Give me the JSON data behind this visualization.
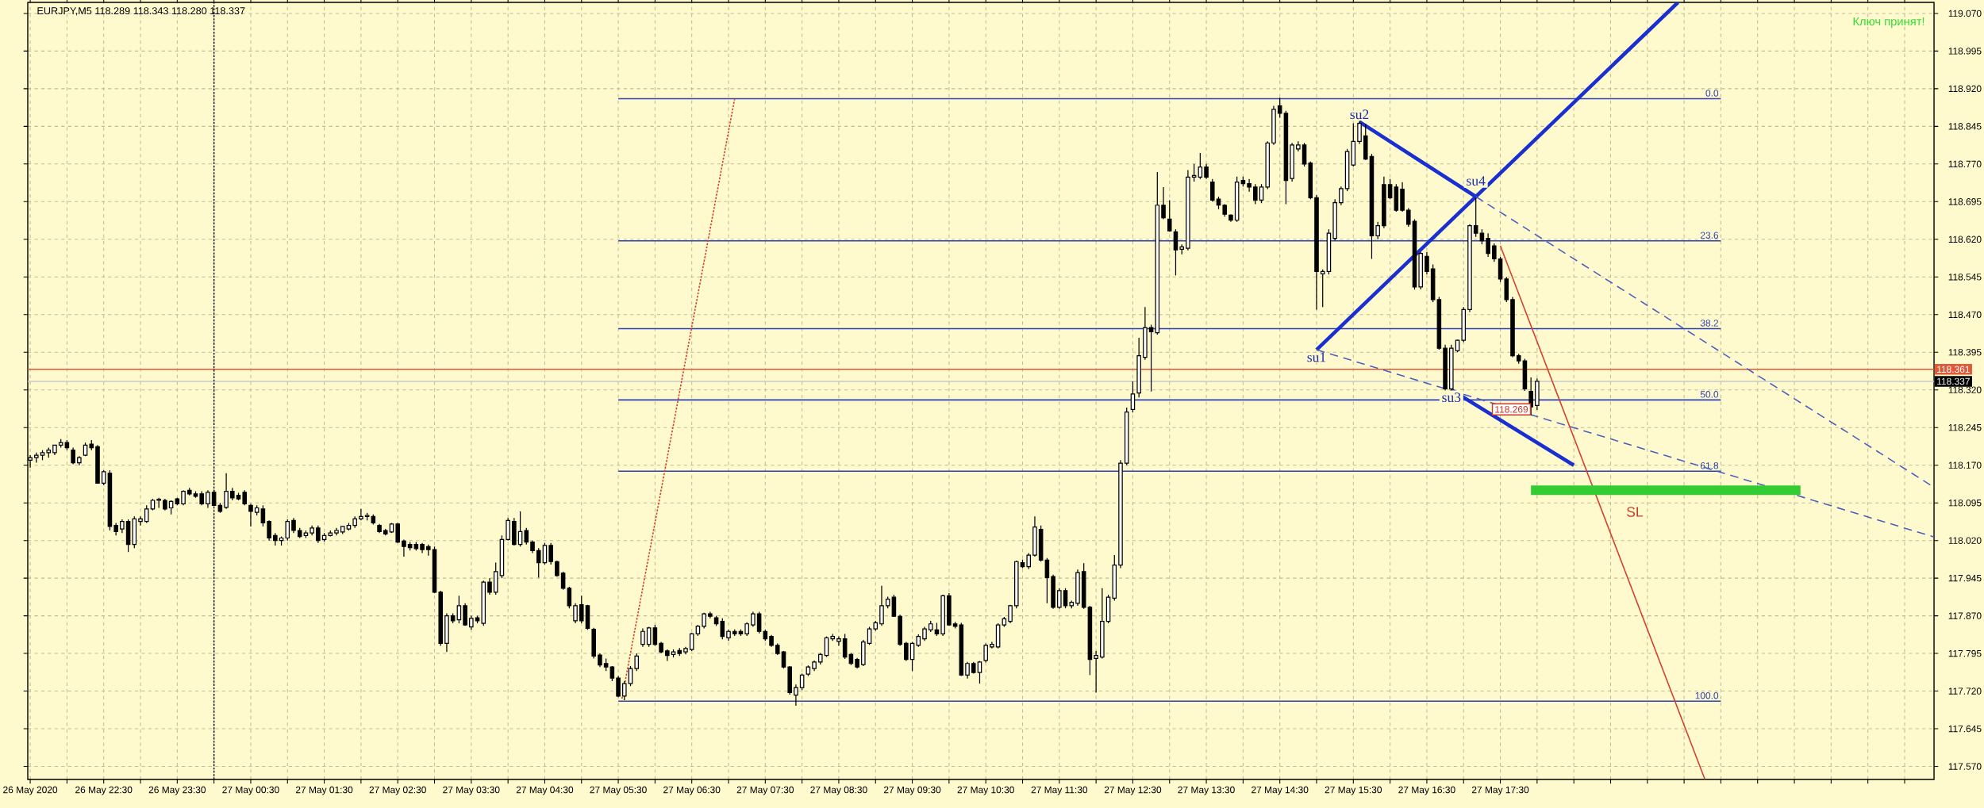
{
  "chart_data": {
    "type": "candlestick",
    "title": "EURJPY,M5  118.289 118.343 118.280 118.337",
    "x": [
      "2020-05-26T21:30",
      "2020-05-26T21:35",
      "2020-05-26T21:40",
      "2020-05-26T21:45",
      "2020-05-26T21:50",
      "2020-05-26T21:55",
      "2020-05-26T22:00",
      "2020-05-26T22:05",
      "2020-05-26T22:10",
      "2020-05-26T22:15",
      "2020-05-26T22:20",
      "2020-05-26T22:25",
      "2020-05-26T22:30",
      "2020-05-26T22:35",
      "2020-05-26T22:40",
      "2020-05-26T22:45",
      "2020-05-26T22:50",
      "2020-05-26T22:55",
      "2020-05-26T23:00",
      "2020-05-26T23:05",
      "2020-05-26T23:10",
      "2020-05-26T23:15",
      "2020-05-26T23:20",
      "2020-05-26T23:25",
      "2020-05-26T23:30",
      "2020-05-26T23:35",
      "2020-05-26T23:40",
      "2020-05-26T23:45",
      "2020-05-26T23:50",
      "2020-05-26T23:55",
      "2020-05-27T00:00",
      "2020-05-27T00:05",
      "2020-05-27T00:10",
      "2020-05-27T00:15",
      "2020-05-27T00:20",
      "2020-05-27T00:25",
      "2020-05-27T00:30",
      "2020-05-27T00:35",
      "2020-05-27T00:40",
      "2020-05-27T00:45",
      "2020-05-27T00:50",
      "2020-05-27T00:55",
      "2020-05-27T01:00",
      "2020-05-27T01:05",
      "2020-05-27T01:10",
      "2020-05-27T01:15",
      "2020-05-27T01:20",
      "2020-05-27T01:25",
      "2020-05-27T01:30",
      "2020-05-27T01:35",
      "2020-05-27T01:40",
      "2020-05-27T01:45",
      "2020-05-27T01:50",
      "2020-05-27T01:55",
      "2020-05-27T02:00",
      "2020-05-27T02:05",
      "2020-05-27T02:10",
      "2020-05-27T02:15",
      "2020-05-27T02:20",
      "2020-05-27T02:25",
      "2020-05-27T02:30",
      "2020-05-27T02:35",
      "2020-05-27T02:40",
      "2020-05-27T02:45",
      "2020-05-27T02:50",
      "2020-05-27T02:55",
      "2020-05-27T03:00",
      "2020-05-27T03:05",
      "2020-05-27T03:10",
      "2020-05-27T03:15",
      "2020-05-27T03:20",
      "2020-05-27T03:25",
      "2020-05-27T03:30",
      "2020-05-27T03:35",
      "2020-05-27T03:40",
      "2020-05-27T03:45",
      "2020-05-27T03:50",
      "2020-05-27T03:55",
      "2020-05-27T04:00",
      "2020-05-27T04:05",
      "2020-05-27T04:10",
      "2020-05-27T04:15",
      "2020-05-27T04:20",
      "2020-05-27T04:25",
      "2020-05-27T04:30",
      "2020-05-27T04:35",
      "2020-05-27T04:40",
      "2020-05-27T04:45",
      "2020-05-27T04:50",
      "2020-05-27T04:55",
      "2020-05-27T05:00",
      "2020-05-27T05:05",
      "2020-05-27T05:10",
      "2020-05-27T05:15",
      "2020-05-27T05:20",
      "2020-05-27T05:25",
      "2020-05-27T05:30",
      "2020-05-27T05:35",
      "2020-05-27T05:40",
      "2020-05-27T05:45",
      "2020-05-27T05:50",
      "2020-05-27T05:55",
      "2020-05-27T06:00",
      "2020-05-27T06:05",
      "2020-05-27T06:10",
      "2020-05-27T06:15",
      "2020-05-27T06:20",
      "2020-05-27T06:25",
      "2020-05-27T06:30",
      "2020-05-27T06:35",
      "2020-05-27T06:40",
      "2020-05-27T06:45",
      "2020-05-27T06:50",
      "2020-05-27T06:55",
      "2020-05-27T07:00",
      "2020-05-27T07:05",
      "2020-05-27T07:10",
      "2020-05-27T07:15",
      "2020-05-27T07:20",
      "2020-05-27T07:25",
      "2020-05-27T07:30",
      "2020-05-27T07:35",
      "2020-05-27T07:40",
      "2020-05-27T07:45",
      "2020-05-27T07:50",
      "2020-05-27T07:55",
      "2020-05-27T08:00",
      "2020-05-27T08:05",
      "2020-05-27T08:10",
      "2020-05-27T08:15",
      "2020-05-27T08:20",
      "2020-05-27T08:25",
      "2020-05-27T08:30",
      "2020-05-27T08:35",
      "2020-05-27T08:40",
      "2020-05-27T08:45",
      "2020-05-27T08:50",
      "2020-05-27T08:55",
      "2020-05-27T09:00",
      "2020-05-27T09:05",
      "2020-05-27T09:10",
      "2020-05-27T09:15",
      "2020-05-27T09:20",
      "2020-05-27T09:25",
      "2020-05-27T09:30",
      "2020-05-27T09:35",
      "2020-05-27T09:40",
      "2020-05-27T09:45",
      "2020-05-27T09:50",
      "2020-05-27T09:55",
      "2020-05-27T10:00",
      "2020-05-27T10:05",
      "2020-05-27T10:10",
      "2020-05-27T10:15",
      "2020-05-27T10:20",
      "2020-05-27T10:25",
      "2020-05-27T10:30",
      "2020-05-27T10:35",
      "2020-05-27T10:40",
      "2020-05-27T10:45",
      "2020-05-27T10:50",
      "2020-05-27T10:55",
      "2020-05-27T11:00",
      "2020-05-27T11:05",
      "2020-05-27T11:10",
      "2020-05-27T11:15",
      "2020-05-27T11:20",
      "2020-05-27T11:25",
      "2020-05-27T11:30",
      "2020-05-27T11:35",
      "2020-05-27T11:40",
      "2020-05-27T11:45",
      "2020-05-27T11:50",
      "2020-05-27T11:55",
      "2020-05-27T12:00",
      "2020-05-27T12:05",
      "2020-05-27T12:10",
      "2020-05-27T12:15",
      "2020-05-27T12:20",
      "2020-05-27T12:25",
      "2020-05-27T12:30",
      "2020-05-27T12:35",
      "2020-05-27T12:40",
      "2020-05-27T12:45",
      "2020-05-27T12:50",
      "2020-05-27T12:55",
      "2020-05-27T13:00",
      "2020-05-27T13:05",
      "2020-05-27T13:10",
      "2020-05-27T13:15",
      "2020-05-27T13:20",
      "2020-05-27T13:25",
      "2020-05-27T13:30",
      "2020-05-27T13:35",
      "2020-05-27T13:40",
      "2020-05-27T13:45",
      "2020-05-27T13:50",
      "2020-05-27T13:55",
      "2020-05-27T14:00",
      "2020-05-27T14:05",
      "2020-05-27T14:10",
      "2020-05-27T14:15",
      "2020-05-27T14:20",
      "2020-05-27T14:25",
      "2020-05-27T14:30",
      "2020-05-27T14:35",
      "2020-05-27T14:40",
      "2020-05-27T14:45",
      "2020-05-27T14:50",
      "2020-05-27T14:55",
      "2020-05-27T15:00",
      "2020-05-27T15:05",
      "2020-05-27T15:10",
      "2020-05-27T15:15",
      "2020-05-27T15:20",
      "2020-05-27T15:25",
      "2020-05-27T15:30",
      "2020-05-27T15:35",
      "2020-05-27T15:40",
      "2020-05-27T15:45",
      "2020-05-27T15:50",
      "2020-05-27T15:55",
      "2020-05-27T16:00",
      "2020-05-27T16:05",
      "2020-05-27T16:10",
      "2020-05-27T16:15",
      "2020-05-27T16:20",
      "2020-05-27T16:25",
      "2020-05-27T16:30",
      "2020-05-27T16:35",
      "2020-05-27T16:40",
      "2020-05-27T16:45",
      "2020-05-27T16:50",
      "2020-05-27T16:55",
      "2020-05-27T17:00",
      "2020-05-27T17:05",
      "2020-05-27T17:10",
      "2020-05-27T17:15",
      "2020-05-27T17:20",
      "2020-05-27T17:25",
      "2020-05-27T17:30",
      "2020-05-27T17:35",
      "2020-05-27T17:40",
      "2020-05-27T17:45",
      "2020-05-27T17:50",
      "2020-05-27T17:55",
      "2020-05-27T18:00"
    ],
    "ohlc": [
      [
        118.18,
        118.19,
        118.165,
        118.185
      ],
      [
        118.185,
        118.195,
        118.175,
        118.19
      ],
      [
        118.19,
        118.2,
        118.18,
        118.195
      ],
      [
        118.195,
        118.205,
        118.185,
        118.2
      ],
      [
        118.195,
        118.21,
        118.19,
        118.21
      ],
      [
        118.21,
        118.222,
        118.205,
        118.215
      ],
      [
        118.215,
        118.22,
        118.2,
        118.205
      ],
      [
        118.2,
        118.205,
        118.172,
        118.175
      ],
      [
        118.175,
        118.188,
        118.17,
        118.185
      ],
      [
        118.19,
        118.215,
        118.188,
        118.21
      ],
      [
        118.212,
        118.22,
        118.2,
        118.205
      ],
      [
        118.207,
        118.21,
        118.133,
        118.134
      ],
      [
        118.134,
        118.16,
        118.13,
        118.157
      ],
      [
        118.154,
        118.16,
        118.04,
        118.048
      ],
      [
        118.05,
        118.055,
        118.03,
        118.038
      ],
      [
        118.043,
        118.062,
        118.035,
        118.058
      ],
      [
        118.058,
        118.062,
        117.997,
        118.012
      ],
      [
        118.012,
        118.068,
        118.005,
        118.063
      ],
      [
        118.058,
        118.068,
        118.05,
        118.063
      ],
      [
        118.058,
        118.09,
        118.055,
        118.083
      ],
      [
        118.083,
        118.103,
        118.08,
        118.1
      ],
      [
        118.1,
        118.105,
        118.085,
        118.102
      ],
      [
        118.1,
        118.103,
        118.08,
        118.083
      ],
      [
        118.085,
        118.1,
        118.072,
        118.098
      ],
      [
        118.103,
        118.105,
        118.09,
        118.093
      ],
      [
        118.093,
        118.12,
        118.09,
        118.118
      ],
      [
        118.12,
        118.125,
        118.11,
        118.113
      ],
      [
        118.113,
        118.118,
        118.105,
        118.108
      ],
      [
        118.113,
        118.118,
        118.09,
        118.093
      ],
      [
        118.093,
        118.12,
        118.085,
        118.116
      ],
      [
        118.116,
        118.12,
        118.088,
        118.09
      ],
      [
        118.09,
        118.095,
        118.075,
        118.078
      ],
      [
        118.086,
        118.154,
        118.083,
        118.118
      ],
      [
        118.118,
        118.125,
        118.1,
        118.105
      ],
      [
        118.11,
        118.115,
        118.1,
        118.103
      ],
      [
        118.116,
        118.12,
        118.09,
        118.093
      ],
      [
        118.09,
        118.093,
        118.048,
        118.078
      ],
      [
        118.076,
        118.09,
        118.07,
        118.085
      ],
      [
        118.083,
        118.09,
        118.048,
        118.055
      ],
      [
        118.058,
        118.06,
        118.02,
        118.025
      ],
      [
        118.03,
        118.035,
        118.01,
        118.02
      ],
      [
        118.02,
        118.028,
        118.01,
        118.025
      ],
      [
        118.025,
        118.062,
        118.02,
        118.058
      ],
      [
        118.06,
        118.065,
        118.035,
        118.04
      ],
      [
        118.04,
        118.045,
        118.025,
        118.028
      ],
      [
        118.03,
        118.04,
        118.025,
        118.035
      ],
      [
        118.035,
        118.05,
        118.03,
        118.045
      ],
      [
        118.045,
        118.05,
        118.015,
        118.02
      ],
      [
        118.022,
        118.035,
        118.018,
        118.03
      ],
      [
        118.03,
        118.04,
        118.028,
        118.035
      ],
      [
        118.035,
        118.045,
        118.03,
        118.04
      ],
      [
        118.037,
        118.048,
        118.033,
        118.048
      ],
      [
        118.043,
        118.055,
        118.04,
        118.05
      ],
      [
        118.05,
        118.068,
        118.045,
        118.063
      ],
      [
        118.063,
        118.083,
        118.06,
        118.068
      ],
      [
        118.068,
        118.075,
        118.06,
        118.07
      ],
      [
        118.068,
        118.072,
        118.052,
        118.055
      ],
      [
        118.05,
        118.053,
        118.035,
        118.038
      ],
      [
        118.04,
        118.043,
        118.03,
        118.033
      ],
      [
        118.037,
        118.055,
        118.035,
        118.053
      ],
      [
        118.053,
        118.055,
        118.015,
        118.017
      ],
      [
        118.019,
        118.022,
        117.988,
        118.008
      ],
      [
        118.012,
        118.017,
        118.0,
        118.006
      ],
      [
        118.012,
        118.017,
        118.0,
        118.004
      ],
      [
        118.012,
        118.015,
        117.995,
        118.002
      ],
      [
        118.008,
        118.012,
        117.99,
        118.002
      ],
      [
        118.002,
        118.008,
        117.915,
        117.917
      ],
      [
        117.917,
        117.92,
        117.81,
        117.815
      ],
      [
        117.815,
        117.875,
        117.798,
        117.87
      ],
      [
        117.87,
        117.875,
        117.855,
        117.86
      ],
      [
        117.862,
        117.91,
        117.855,
        117.89
      ],
      [
        117.89,
        117.895,
        117.85,
        117.852
      ],
      [
        117.848,
        117.87,
        117.842,
        117.865
      ],
      [
        117.866,
        117.87,
        117.855,
        117.86
      ],
      [
        117.855,
        117.94,
        117.85,
        117.937
      ],
      [
        117.937,
        117.945,
        117.912,
        117.917
      ],
      [
        117.917,
        117.976,
        117.912,
        117.958
      ],
      [
        117.95,
        118.03,
        117.945,
        118.022
      ],
      [
        118.022,
        118.065,
        118.02,
        118.06
      ],
      [
        118.058,
        118.065,
        118.01,
        118.012
      ],
      [
        118.012,
        118.078,
        118.008,
        118.038
      ],
      [
        118.04,
        118.045,
        118.012,
        118.017
      ],
      [
        118.017,
        118.02,
        117.995,
        118.0
      ],
      [
        118.0,
        118.005,
        117.946,
        117.976
      ],
      [
        117.976,
        118.015,
        117.972,
        118.01
      ],
      [
        118.01,
        118.015,
        117.972,
        117.978
      ],
      [
        117.978,
        117.98,
        117.948,
        117.95
      ],
      [
        117.955,
        117.958,
        117.922,
        117.925
      ],
      [
        117.925,
        117.928,
        117.885,
        117.89
      ],
      [
        117.86,
        117.895,
        117.855,
        117.89
      ],
      [
        117.892,
        117.91,
        117.855,
        117.86
      ],
      [
        117.89,
        117.892,
        117.842,
        117.845
      ],
      [
        117.843,
        117.846,
        117.785,
        117.79
      ],
      [
        117.792,
        117.795,
        117.768,
        117.772
      ],
      [
        117.775,
        117.785,
        117.76,
        117.768
      ],
      [
        117.768,
        117.77,
        117.74,
        117.746
      ],
      [
        117.746,
        117.75,
        117.708,
        117.71
      ],
      [
        117.71,
        117.74,
        117.702,
        117.735
      ],
      [
        117.735,
        117.77,
        117.73,
        117.765
      ],
      [
        117.765,
        117.795,
        117.76,
        117.79
      ],
      [
        117.813,
        117.845,
        117.808,
        117.839
      ],
      [
        117.813,
        117.848,
        117.808,
        117.846
      ],
      [
        117.846,
        117.852,
        117.81,
        117.813
      ],
      [
        117.815,
        117.818,
        117.795,
        117.798
      ],
      [
        117.8,
        117.803,
        117.78,
        117.791
      ],
      [
        117.793,
        117.803,
        117.787,
        117.798
      ],
      [
        117.801,
        117.806,
        117.79,
        117.795
      ],
      [
        117.798,
        117.808,
        117.793,
        117.805
      ],
      [
        117.803,
        117.836,
        117.8,
        117.834
      ],
      [
        117.834,
        117.852,
        117.83,
        117.849
      ],
      [
        117.849,
        117.876,
        117.845,
        117.874
      ],
      [
        117.874,
        117.878,
        117.865,
        117.869
      ],
      [
        117.866,
        117.87,
        117.85,
        117.854
      ],
      [
        117.859,
        117.865,
        117.823,
        117.829
      ],
      [
        117.826,
        117.842,
        117.82,
        117.839
      ],
      [
        117.839,
        117.843,
        117.83,
        117.834
      ],
      [
        117.839,
        117.843,
        117.83,
        117.834
      ],
      [
        117.834,
        117.857,
        117.83,
        117.854
      ],
      [
        117.852,
        117.878,
        117.848,
        117.874
      ],
      [
        117.874,
        117.878,
        117.835,
        117.839
      ],
      [
        117.839,
        117.842,
        117.82,
        117.824
      ],
      [
        117.829,
        117.832,
        117.808,
        117.811
      ],
      [
        117.811,
        117.815,
        117.792,
        117.795
      ],
      [
        117.798,
        117.8,
        117.765,
        117.768
      ],
      [
        117.768,
        117.77,
        117.713,
        117.717
      ],
      [
        117.712,
        117.733,
        117.691,
        117.727
      ],
      [
        117.727,
        117.755,
        117.722,
        117.752
      ],
      [
        117.754,
        117.771,
        117.75,
        117.768
      ],
      [
        117.765,
        117.781,
        117.76,
        117.778
      ],
      [
        117.778,
        117.796,
        117.773,
        117.793
      ],
      [
        117.791,
        117.829,
        117.788,
        117.826
      ],
      [
        117.824,
        117.834,
        117.82,
        117.829
      ],
      [
        117.819,
        117.829,
        117.81,
        117.824
      ],
      [
        117.824,
        117.834,
        117.784,
        117.788
      ],
      [
        117.793,
        117.796,
        117.772,
        117.775
      ],
      [
        117.783,
        117.786,
        117.765,
        117.768
      ],
      [
        117.773,
        117.822,
        117.77,
        117.818
      ],
      [
        117.815,
        117.848,
        117.812,
        117.844
      ],
      [
        117.844,
        117.86,
        117.84,
        117.856
      ],
      [
        117.854,
        117.93,
        117.85,
        117.89
      ],
      [
        117.89,
        117.908,
        117.885,
        117.903
      ],
      [
        117.907,
        117.912,
        117.868,
        117.869
      ],
      [
        117.869,
        117.872,
        117.81,
        117.813
      ],
      [
        117.815,
        117.818,
        117.78,
        117.783
      ],
      [
        117.783,
        117.818,
        117.76,
        117.815
      ],
      [
        117.811,
        117.833,
        117.808,
        117.829
      ],
      [
        117.824,
        117.848,
        117.82,
        117.844
      ],
      [
        117.842,
        117.86,
        117.838,
        117.854
      ],
      [
        117.842,
        117.856,
        117.83,
        117.834
      ],
      [
        117.834,
        117.912,
        117.83,
        117.91
      ],
      [
        117.91,
        117.915,
        117.85,
        117.852
      ],
      [
        117.854,
        117.858,
        117.845,
        117.849
      ],
      [
        117.852,
        117.856,
        117.75,
        117.752
      ],
      [
        117.752,
        117.778,
        117.745,
        117.775
      ],
      [
        117.775,
        117.778,
        117.755,
        117.757
      ],
      [
        117.757,
        117.78,
        117.735,
        117.778
      ],
      [
        117.781,
        117.815,
        117.777,
        117.811
      ],
      [
        117.808,
        117.818,
        117.805,
        117.813
      ],
      [
        117.808,
        117.855,
        117.805,
        117.852
      ],
      [
        117.852,
        117.868,
        117.848,
        117.864
      ],
      [
        117.859,
        117.892,
        117.855,
        117.89
      ],
      [
        117.89,
        117.98,
        117.885,
        117.978
      ],
      [
        117.976,
        117.982,
        117.965,
        117.968
      ],
      [
        117.968,
        117.995,
        117.963,
        117.991
      ],
      [
        117.991,
        118.068,
        117.988,
        118.047
      ],
      [
        118.042,
        118.05,
        117.978,
        117.981
      ],
      [
        117.981,
        117.985,
        117.895,
        117.946
      ],
      [
        117.948,
        117.952,
        117.884,
        117.887
      ],
      [
        117.887,
        117.925,
        117.884,
        117.92
      ],
      [
        117.92,
        117.925,
        117.885,
        117.89
      ],
      [
        117.89,
        117.9,
        117.885,
        117.897
      ],
      [
        117.895,
        117.962,
        117.89,
        117.956
      ],
      [
        117.958,
        117.975,
        117.884,
        117.887
      ],
      [
        117.887,
        117.89,
        117.752,
        117.783
      ],
      [
        117.785,
        117.8,
        117.717,
        117.791
      ],
      [
        117.788,
        117.925,
        117.785,
        117.859
      ],
      [
        117.859,
        117.912,
        117.855,
        117.907
      ],
      [
        117.905,
        117.991,
        117.9,
        117.971
      ],
      [
        117.971,
        118.18,
        117.965,
        118.174
      ],
      [
        118.174,
        118.285,
        118.17,
        118.276
      ],
      [
        118.281,
        118.337,
        118.275,
        118.312
      ],
      [
        118.314,
        118.424,
        118.305,
        118.388
      ],
      [
        118.385,
        118.485,
        118.38,
        118.444
      ],
      [
        118.444,
        118.45,
        118.317,
        118.436
      ],
      [
        118.434,
        118.754,
        118.43,
        118.688
      ],
      [
        118.688,
        118.724,
        118.66,
        118.663
      ],
      [
        118.66,
        118.698,
        118.635,
        118.637
      ],
      [
        118.635,
        118.64,
        118.548,
        118.599
      ],
      [
        118.6,
        118.61,
        118.59,
        118.605
      ],
      [
        118.602,
        118.758,
        118.598,
        118.744
      ],
      [
        118.744,
        118.77,
        118.735,
        118.747
      ],
      [
        118.744,
        118.792,
        118.74,
        118.764
      ],
      [
        118.764,
        118.77,
        118.74,
        118.744
      ],
      [
        118.734,
        118.74,
        118.695,
        118.698
      ],
      [
        118.7,
        118.705,
        118.68,
        118.688
      ],
      [
        118.688,
        118.69,
        118.665,
        118.67
      ],
      [
        118.668,
        118.67,
        118.655,
        118.658
      ],
      [
        118.658,
        118.745,
        118.655,
        118.734
      ],
      [
        118.737,
        118.745,
        118.725,
        118.731
      ],
      [
        118.731,
        118.74,
        118.715,
        118.724
      ],
      [
        118.724,
        118.73,
        118.69,
        118.698
      ],
      [
        118.698,
        118.73,
        118.692,
        118.724
      ],
      [
        118.724,
        118.815,
        118.72,
        118.812
      ],
      [
        118.812,
        118.886,
        118.808,
        118.879
      ],
      [
        118.886,
        118.902,
        118.862,
        118.871
      ],
      [
        118.871,
        118.876,
        118.69,
        118.737
      ],
      [
        118.741,
        118.812,
        118.735,
        118.808
      ],
      [
        118.8,
        118.815,
        118.795,
        118.808
      ],
      [
        118.808,
        118.812,
        118.765,
        118.77
      ],
      [
        118.772,
        118.775,
        118.7,
        118.703
      ],
      [
        118.703,
        118.708,
        118.48,
        118.556
      ],
      [
        118.551,
        118.56,
        118.485,
        118.556
      ],
      [
        118.556,
        118.64,
        118.55,
        118.632
      ],
      [
        118.622,
        118.7,
        118.618,
        118.693
      ],
      [
        118.693,
        118.725,
        118.688,
        118.721
      ],
      [
        118.721,
        118.8,
        118.716,
        118.795
      ],
      [
        118.768,
        118.851,
        118.765,
        118.815
      ],
      [
        118.815,
        118.856,
        118.81,
        118.851
      ],
      [
        118.826,
        118.85,
        118.778,
        118.78
      ],
      [
        118.785,
        118.79,
        118.581,
        118.627
      ],
      [
        118.627,
        118.655,
        118.62,
        118.647
      ],
      [
        118.729,
        118.745,
        118.642,
        118.647
      ],
      [
        118.729,
        118.74,
        118.7,
        118.703
      ],
      [
        118.724,
        118.73,
        118.675,
        118.678
      ],
      [
        118.72,
        118.734,
        118.675,
        118.678
      ],
      [
        118.678,
        118.682,
        118.645,
        118.65
      ],
      [
        118.656,
        118.66,
        118.52,
        118.525
      ],
      [
        118.525,
        118.595,
        118.52,
        118.592
      ],
      [
        118.586,
        118.595,
        118.55,
        118.556
      ],
      [
        118.561,
        118.57,
        118.495,
        118.5
      ],
      [
        118.5,
        118.505,
        118.4,
        118.403
      ],
      [
        118.403,
        118.41,
        118.317,
        118.322
      ],
      [
        118.322,
        118.41,
        118.318,
        118.403
      ],
      [
        118.398,
        118.42,
        118.395,
        118.419
      ],
      [
        118.419,
        118.485,
        118.415,
        118.48
      ],
      [
        118.48,
        118.65,
        118.475,
        118.647
      ],
      [
        118.647,
        118.703,
        118.625,
        118.632
      ],
      [
        118.632,
        118.64,
        118.61,
        118.617
      ],
      [
        118.622,
        118.632,
        118.585,
        118.592
      ],
      [
        118.607,
        118.612,
        118.575,
        118.581
      ],
      [
        118.581,
        118.585,
        118.535,
        118.541
      ],
      [
        118.541,
        118.545,
        118.495,
        118.5
      ],
      [
        118.5,
        118.505,
        118.385,
        118.388
      ],
      [
        118.388,
        118.392,
        118.372,
        118.378
      ],
      [
        118.378,
        118.382,
        118.318,
        118.322
      ],
      [
        118.317,
        118.345,
        118.269,
        118.286
      ],
      [
        118.289,
        118.343,
        118.28,
        118.337
      ]
    ],
    "series": [
      {
        "type": "line",
        "name": "0.0",
        "color": "#2b3fb5",
        "x": [
          "2020-05-27T05:30",
          "2020-05-27T20:30"
        ],
        "values": [
          118.9,
          118.9
        ]
      },
      {
        "type": "line",
        "name": "23.6",
        "color": "#2b3fb5",
        "x": [
          "2020-05-27T05:30",
          "2020-05-27T20:30"
        ],
        "values": [
          118.617,
          118.617
        ]
      },
      {
        "type": "line",
        "name": "38.2",
        "color": "#2b3fb5",
        "x": [
          "2020-05-27T05:30",
          "2020-05-27T20:30"
        ],
        "values": [
          118.442,
          118.442
        ]
      },
      {
        "type": "line",
        "name": "50.0",
        "color": "#2b3fb5",
        "x": [
          "2020-05-27T05:30",
          "2020-05-27T20:30"
        ],
        "values": [
          118.3,
          118.3
        ]
      },
      {
        "type": "line",
        "name": "61.8",
        "color": "#2b3fb5",
        "x": [
          "2020-05-27T05:30",
          "2020-05-27T20:30"
        ],
        "values": [
          118.158,
          118.158
        ]
      },
      {
        "type": "line",
        "name": "100.0",
        "color": "#2b3fb5",
        "x": [
          "2020-05-27T05:30",
          "2020-05-27T20:30"
        ],
        "values": [
          117.7,
          117.7
        ]
      },
      {
        "type": "line",
        "color": "#d04030",
        "line_style": "dotted",
        "x": [
          "2020-05-27T05:33",
          "2020-05-27T07:05"
        ],
        "values": [
          117.705,
          118.9
        ]
      },
      {
        "type": "line",
        "color": "#1a2fd0",
        "x": [
          "2020-05-27T15:00",
          "2020-05-27T19:55"
        ],
        "values": [
          118.4,
          119.092
        ]
      },
      {
        "type": "line",
        "color": "#1a2fd0",
        "x": [
          "2020-05-27T15:35",
          "2020-05-27T17:10"
        ],
        "values": [
          118.854,
          118.705
        ]
      },
      {
        "type": "line",
        "color": "#4a5fc0",
        "line_style": "dashed",
        "x": [
          "2020-05-27T17:10",
          "2020-05-27T23:24"
        ],
        "values": [
          118.705,
          118.126
        ]
      },
      {
        "type": "line",
        "color": "#4a5fc0",
        "line_style": "dashed",
        "x": [
          "2020-05-27T15:00",
          "2020-05-27T23:24"
        ],
        "values": [
          118.4,
          118.027
        ]
      },
      {
        "type": "line",
        "color": "#1a2fd0",
        "x": [
          "2020-05-27T16:50",
          "2020-05-27T18:30"
        ],
        "values": [
          118.32,
          118.17
        ]
      },
      {
        "type": "line",
        "color": "#d04030",
        "x": [
          "2020-05-27T17:30",
          "2020-05-27T20:17"
        ],
        "values": [
          118.607,
          117.544
        ]
      },
      {
        "type": "line",
        "color": "#33cc33",
        "x": [
          "2020-05-27T17:55",
          "2020-05-27T21:35"
        ],
        "values": [
          118.12,
          118.12
        ]
      }
    ],
    "ref_lines": [
      {
        "axis": "y",
        "value": 118.361,
        "label": "118.361",
        "color": "#e05a3a"
      },
      {
        "axis": "y",
        "value": 118.337,
        "label": "118.337",
        "color": "#c8c8c8"
      },
      {
        "axis": "x",
        "value": "2020-05-27T00:00",
        "color": "#000000",
        "line_style": "dotted"
      }
    ],
    "annotations": [
      "Ключ принят!",
      {
        "text": "su1",
        "x": "2020-05-27T15:00",
        "y": 118.4
      },
      {
        "text": "su2",
        "x": "2020-05-27T15:35",
        "y": 118.854
      },
      {
        "text": "su3",
        "x": "2020-05-27T16:50",
        "y": 118.32
      },
      {
        "text": "su4",
        "x": "2020-05-27T17:10",
        "y": 118.705
      },
      {
        "text": "118.269",
        "x": "2020-05-27T17:55",
        "y": 118.269
      },
      "SL"
    ],
    "xlim": [
      "2020-05-26T21:28",
      "2020-05-27T23:24"
    ],
    "ylim": [
      117.544,
      119.092
    ],
    "xticks": [
      {
        "value": "2020-05-26T21:30",
        "label": "26 May 2020"
      },
      {
        "value": "2020-05-26T22:00",
        "label": null
      },
      {
        "value": "2020-05-26T22:30",
        "label": "26 May 22:30"
      },
      {
        "value": "2020-05-26T23:00",
        "label": null
      },
      {
        "value": "2020-05-26T23:30",
        "label": "26 May 23:30"
      },
      {
        "value": "2020-05-27T00:00",
        "label": null
      },
      {
        "value": "2020-05-27T00:30",
        "label": "27 May 00:30"
      },
      {
        "value": "2020-05-27T01:00",
        "label": null
      },
      {
        "value": "2020-05-27T01:30",
        "label": "27 May 01:30"
      },
      {
        "value": "2020-05-27T02:00",
        "label": null
      },
      {
        "value": "2020-05-27T02:30",
        "label": "27 May 02:30"
      },
      {
        "value": "2020-05-27T03:00",
        "label": null
      },
      {
        "value": "2020-05-27T03:30",
        "label": "27 May 03:30"
      },
      {
        "value": "2020-05-27T04:00",
        "label": null
      },
      {
        "value": "2020-05-27T04:30",
        "label": "27 May 04:30"
      },
      {
        "value": "2020-05-27T05:00",
        "label": null
      },
      {
        "value": "2020-05-27T05:30",
        "label": "27 May 05:30"
      },
      {
        "value": "2020-05-27T06:00",
        "label": null
      },
      {
        "value": "2020-05-27T06:30",
        "label": "27 May 06:30"
      },
      {
        "value": "2020-05-27T07:00",
        "label": null
      },
      {
        "value": "2020-05-27T07:30",
        "label": "27 May 07:30"
      },
      {
        "value": "2020-05-27T08:00",
        "label": null
      },
      {
        "value": "2020-05-27T08:30",
        "label": "27 May 08:30"
      },
      {
        "value": "2020-05-27T09:00",
        "label": null
      },
      {
        "value": "2020-05-27T09:30",
        "label": "27 May 09:30"
      },
      {
        "value": "2020-05-27T10:00",
        "label": null
      },
      {
        "value": "2020-05-27T10:30",
        "label": "27 May 10:30"
      },
      {
        "value": "2020-05-27T11:00",
        "label": null
      },
      {
        "value": "2020-05-27T11:30",
        "label": "27 May 11:30"
      },
      {
        "value": "2020-05-27T12:00",
        "label": null
      },
      {
        "value": "2020-05-27T12:30",
        "label": "27 May 12:30"
      },
      {
        "value": "2020-05-27T13:00",
        "label": null
      },
      {
        "value": "2020-05-27T13:30",
        "label": "27 May 13:30"
      },
      {
        "value": "2020-05-27T14:00",
        "label": null
      },
      {
        "value": "2020-05-27T14:30",
        "label": "27 May 14:30"
      },
      {
        "value": "2020-05-27T15:00",
        "label": null
      },
      {
        "value": "2020-05-27T15:30",
        "label": "27 May 15:30"
      },
      {
        "value": "2020-05-27T16:00",
        "label": null
      },
      {
        "value": "2020-05-27T16:30",
        "label": "27 May 16:30"
      },
      {
        "value": "2020-05-27T17:00",
        "label": null
      },
      {
        "value": "2020-05-27T17:30",
        "label": "27 May 17:30"
      },
      {
        "value": "2020-05-27T18:00",
        "label": null
      },
      {
        "value": "2020-05-27T18:30",
        "label": null
      },
      {
        "value": "2020-05-27T19:00",
        "label": null
      },
      {
        "value": "2020-05-27T19:30",
        "label": null
      },
      {
        "value": "2020-05-27T20:00",
        "label": null
      },
      {
        "value": "2020-05-27T20:30",
        "label": null
      },
      {
        "value": "2020-05-27T21:00",
        "label": null
      },
      {
        "value": "2020-05-27T21:30",
        "label": null
      },
      {
        "value": "2020-05-27T22:00",
        "label": null
      },
      {
        "value": "2020-05-27T22:30",
        "label": null
      },
      {
        "value": "2020-05-27T23:00",
        "label": null
      }
    ],
    "yticks": [
      {
        "value": 117.57,
        "label": "117.570"
      },
      {
        "value": 117.645,
        "label": "117.645"
      },
      {
        "value": 117.72,
        "label": "117.720"
      },
      {
        "value": 117.795,
        "label": "117.795"
      },
      {
        "value": 117.87,
        "label": "117.870"
      },
      {
        "value": 117.945,
        "label": "117.945"
      },
      {
        "value": 118.02,
        "label": "118.020"
      },
      {
        "value": 118.095,
        "label": "118.095"
      },
      {
        "value": 118.17,
        "label": "118.170"
      },
      {
        "value": 118.245,
        "label": "118.245"
      },
      {
        "value": 118.32,
        "label": "118.320"
      },
      {
        "value": 118.395,
        "label": "118.395"
      },
      {
        "value": 118.47,
        "label": "118.470"
      },
      {
        "value": 118.545,
        "label": "118.545"
      },
      {
        "value": 118.62,
        "label": "118.620"
      },
      {
        "value": 118.695,
        "label": "118.695"
      },
      {
        "value": 118.77,
        "label": "118.770"
      },
      {
        "value": 118.845,
        "label": "118.845"
      },
      {
        "value": 118.92,
        "label": "118.920"
      },
      {
        "value": 118.995,
        "label": "118.995"
      },
      {
        "value": 119.07,
        "label": "119.070"
      }
    ],
    "grid": true
  }
}
